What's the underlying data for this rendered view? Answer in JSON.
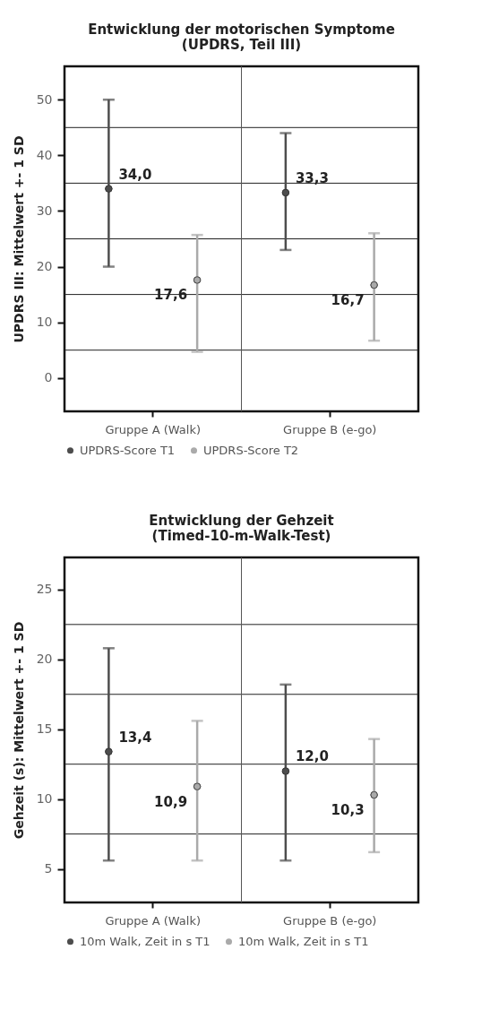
{
  "chart_data": [
    {
      "type": "scatter",
      "title": "Entwicklung der motorischen Symptome\n(UPDRS, Teil III)",
      "ylabel": "UPDRS III: Mittelwert +- 1 SD",
      "categories": [
        "Gruppe A (Walk)",
        "Gruppe B (e-go)"
      ],
      "ylim": [
        -6,
        56
      ],
      "yticks": [
        0,
        10,
        20,
        30,
        40,
        50
      ],
      "grid": "x",
      "legend": "bottom",
      "marker": "circle",
      "series": [
        {
          "name": "UPDRS-Score T1",
          "color": "#4d4d4d",
          "values": [
            34.0,
            33.3
          ],
          "errors": [
            [
              20,
              50
            ],
            [
              23,
              44
            ]
          ],
          "value_labels": [
            "34,0",
            "33,3"
          ]
        },
        {
          "name": "UPDRS-Score T2",
          "color": "#aaaaaa",
          "values": [
            17.6,
            16.7
          ],
          "errors": [
            [
              4.7,
              25.7
            ],
            [
              6.7,
              26
            ]
          ],
          "value_labels": [
            "17,6",
            "16,7"
          ]
        }
      ],
      "ref_lines": [
        {
          "axis": "y",
          "value": 5
        },
        {
          "axis": "y",
          "value": 15
        },
        {
          "axis": "y",
          "value": 25
        },
        {
          "axis": "y",
          "value": 35
        },
        {
          "axis": "y",
          "value": 45
        }
      ]
    },
    {
      "type": "scatter",
      "title": "Entwicklung der Gehzeit\n(Timed-10-m-Walk-Test)",
      "ylabel": "Gehzeit (s): Mittelwert +- 1 SD",
      "categories": [
        "Gruppe A (Walk)",
        "Gruppe B (e-go)"
      ],
      "ylim": [
        2.6,
        27.3
      ],
      "yticks": [
        5,
        10,
        15,
        20,
        25
      ],
      "grid": "x",
      "legend": "bottom",
      "marker": "circle",
      "series": [
        {
          "name": "10m Walk, Zeit in s T1",
          "color": "#4d4d4d",
          "values": [
            13.4,
            12.0
          ],
          "errors": [
            [
              5.6,
              20.8
            ],
            [
              5.6,
              18.2
            ]
          ],
          "value_labels": [
            "13,4",
            "12,0"
          ]
        },
        {
          "name": "10m Walk, Zeit in s T1",
          "color": "#aaaaaa",
          "values": [
            10.9,
            10.3
          ],
          "errors": [
            [
              5.6,
              15.6
            ],
            [
              6.2,
              14.3
            ]
          ],
          "value_labels": [
            "10,9",
            "10,3"
          ]
        }
      ],
      "ref_lines": [
        {
          "axis": "y",
          "value": 7.5
        },
        {
          "axis": "y",
          "value": 12.5
        },
        {
          "axis": "y",
          "value": 17.5
        },
        {
          "axis": "y",
          "value": 22.5
        }
      ]
    }
  ]
}
